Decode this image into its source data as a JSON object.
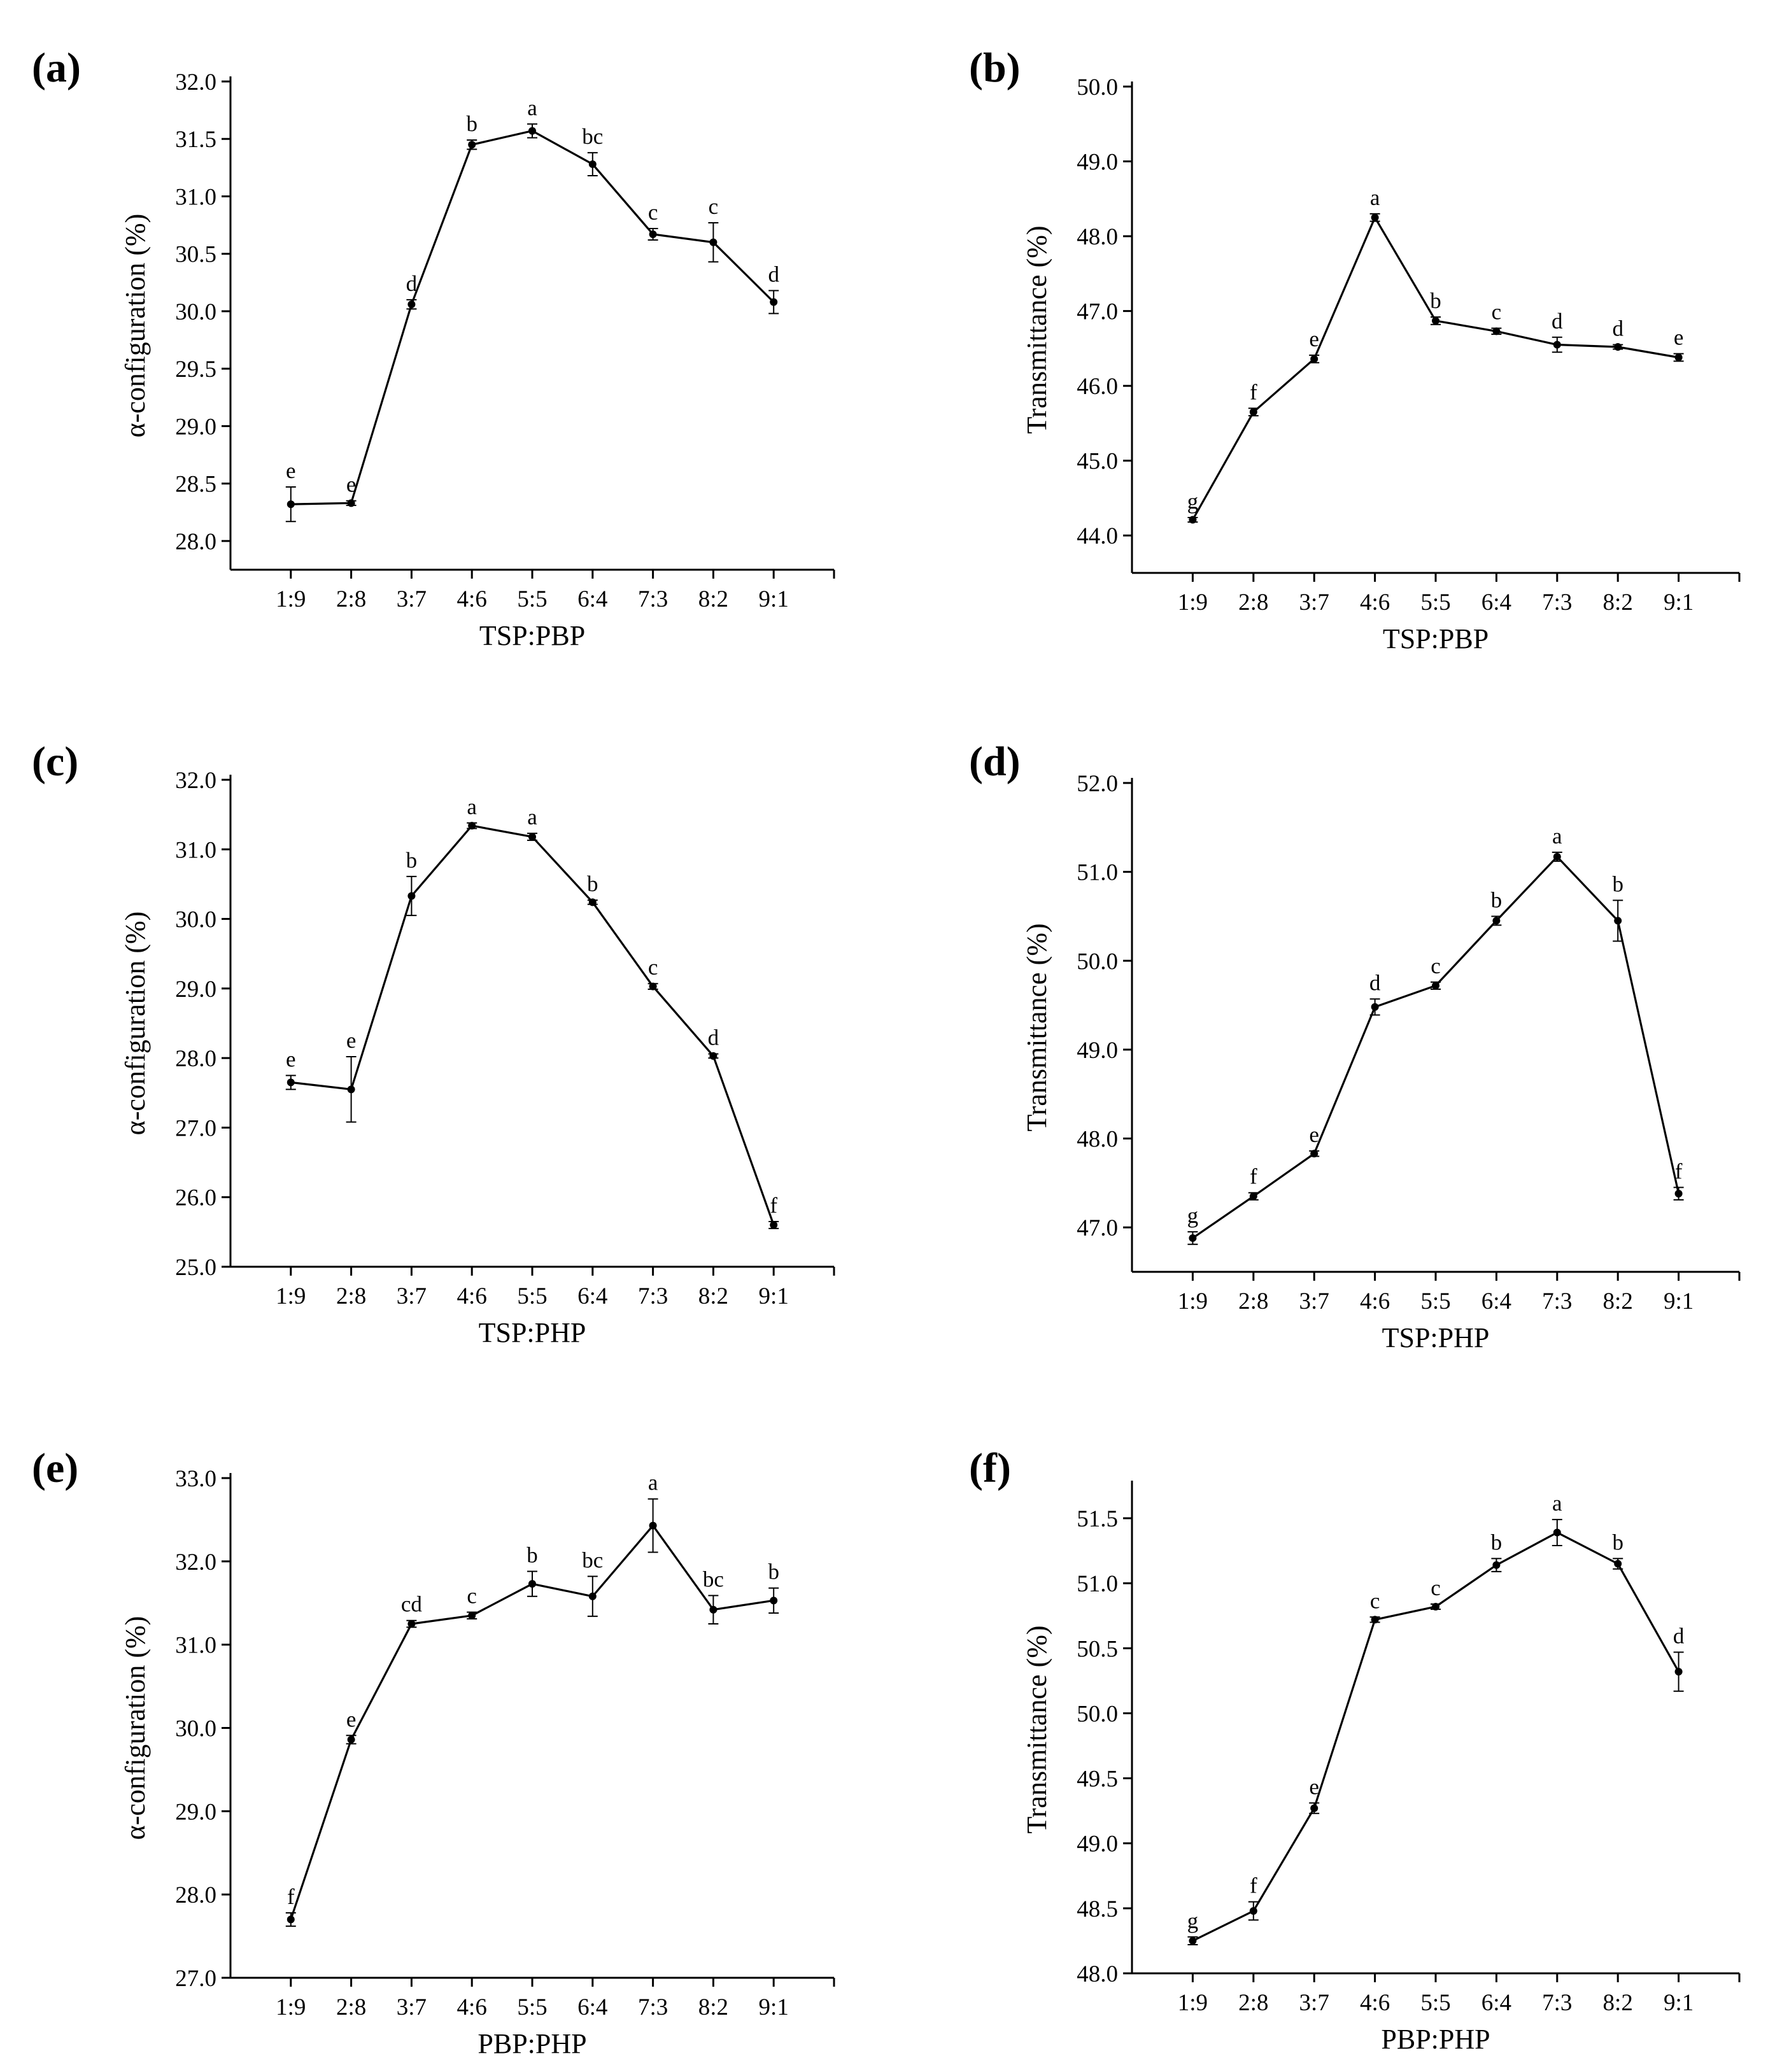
{
  "figure": {
    "background": "#ffffff",
    "line_color": "#000000"
  },
  "chart_data": [
    {
      "panel": "(a)",
      "type": "line",
      "xlabel": "TSP:PBP",
      "ylabel": "α-configuration (%)",
      "categories": [
        "1:9",
        "2:8",
        "3:7",
        "4:6",
        "5:5",
        "6:4",
        "7:3",
        "8:2",
        "9:1"
      ],
      "values": [
        28.32,
        28.33,
        30.06,
        31.45,
        31.57,
        31.28,
        30.67,
        30.6,
        30.08
      ],
      "errors": [
        0.15,
        0.02,
        0.04,
        0.04,
        0.06,
        0.1,
        0.05,
        0.17,
        0.1
      ],
      "significance": [
        "e",
        "e",
        "d",
        "b",
        "a",
        "bc",
        "c",
        "c",
        "d"
      ],
      "ylim": [
        27.75,
        32.0
      ],
      "yticks": [
        "28.0",
        "28.5",
        "29.0",
        "29.5",
        "30.0",
        "30.5",
        "31.0",
        "31.5",
        "32.0"
      ]
    },
    {
      "panel": "(b)",
      "type": "line",
      "xlabel": "TSP:PBP",
      "ylabel": "Transmittance (%)",
      "categories": [
        "1:9",
        "2:8",
        "3:7",
        "4:6",
        "5:5",
        "6:4",
        "7:3",
        "8:2",
        "9:1"
      ],
      "values": [
        44.21,
        45.65,
        46.36,
        48.25,
        46.87,
        46.73,
        46.55,
        46.52,
        46.38
      ],
      "errors": [
        0.03,
        0.05,
        0.05,
        0.05,
        0.05,
        0.04,
        0.1,
        0.03,
        0.05
      ],
      "significance": [
        "g",
        "f",
        "e",
        "a",
        "b",
        "c",
        "d",
        "d",
        "e"
      ],
      "ylim": [
        43.5,
        50.0
      ],
      "yticks": [
        "44.0",
        "45.0",
        "46.0",
        "47.0",
        "48.0",
        "49.0",
        "50.0"
      ]
    },
    {
      "panel": "(c)",
      "type": "line",
      "xlabel": "TSP:PHP",
      "ylabel": "α-configuration (%)",
      "categories": [
        "1:9",
        "2:8",
        "3:7",
        "4:6",
        "5:5",
        "6:4",
        "7:3",
        "8:2",
        "9:1"
      ],
      "values": [
        27.65,
        27.55,
        30.33,
        31.34,
        31.18,
        30.24,
        29.03,
        28.03,
        25.6
      ],
      "errors": [
        0.1,
        0.47,
        0.28,
        0.04,
        0.05,
        0.03,
        0.04,
        0.03,
        0.05
      ],
      "significance": [
        "e",
        "e",
        "b",
        "a",
        "a",
        "b",
        "c",
        "d",
        "f"
      ],
      "ylim": [
        25.0,
        32.0
      ],
      "yticks": [
        "25.0",
        "26.0",
        "27.0",
        "28.0",
        "29.0",
        "30.0",
        "31.0",
        "32.0"
      ]
    },
    {
      "panel": "(d)",
      "type": "line",
      "xlabel": "TSP:PHP",
      "ylabel": "Transmittance (%)",
      "categories": [
        "1:9",
        "2:8",
        "3:7",
        "4:6",
        "5:5",
        "6:4",
        "7:3",
        "8:2",
        "9:1"
      ],
      "values": [
        46.88,
        47.35,
        47.83,
        49.48,
        49.72,
        50.45,
        51.17,
        50.45,
        47.38
      ],
      "errors": [
        0.07,
        0.04,
        0.03,
        0.09,
        0.04,
        0.05,
        0.05,
        0.23,
        0.07
      ],
      "significance": [
        "g",
        "f",
        "e",
        "d",
        "c",
        "b",
        "a",
        "b",
        "f"
      ],
      "ylim": [
        46.5,
        52.0
      ],
      "yticks": [
        "47.0",
        "48.0",
        "49.0",
        "50.0",
        "51.0",
        "52.0"
      ]
    },
    {
      "panel": "(e)",
      "type": "line",
      "xlabel": "PBP:PHP",
      "ylabel": "α-configuration (%)",
      "categories": [
        "1:9",
        "2:8",
        "3:7",
        "4:6",
        "5:5",
        "6:4",
        "7:3",
        "8:2",
        "9:1"
      ],
      "values": [
        27.7,
        29.86,
        31.25,
        31.35,
        31.73,
        31.58,
        32.43,
        31.42,
        31.53
      ],
      "errors": [
        0.08,
        0.05,
        0.04,
        0.04,
        0.15,
        0.24,
        0.32,
        0.17,
        0.15
      ],
      "significance": [
        "f",
        "e",
        "cd",
        "c",
        "b",
        "bc",
        "a",
        "bc",
        "b"
      ],
      "ylim": [
        27.0,
        33.0
      ],
      "yticks": [
        "27.0",
        "28.0",
        "29.0",
        "30.0",
        "31.0",
        "32.0",
        "33.0"
      ]
    },
    {
      "panel": "(f)",
      "type": "line",
      "xlabel": "PBP:PHP",
      "ylabel": "Transmittance (%)",
      "categories": [
        "1:9",
        "2:8",
        "3:7",
        "4:6",
        "5:5",
        "6:4",
        "7:3",
        "8:2",
        "9:1"
      ],
      "values": [
        48.25,
        48.48,
        49.27,
        50.72,
        50.82,
        51.14,
        51.39,
        51.15,
        50.32
      ],
      "errors": [
        0.03,
        0.07,
        0.04,
        0.02,
        0.02,
        0.05,
        0.1,
        0.04,
        0.15
      ],
      "significance": [
        "g",
        "f",
        "e",
        "c",
        "c",
        "b",
        "a",
        "b",
        "d"
      ],
      "ylim": [
        48.0,
        51.75
      ],
      "yticks": [
        "48.0",
        "48.5",
        "49.0",
        "49.5",
        "50.0",
        "50.5",
        "51.0",
        "51.5"
      ]
    }
  ]
}
